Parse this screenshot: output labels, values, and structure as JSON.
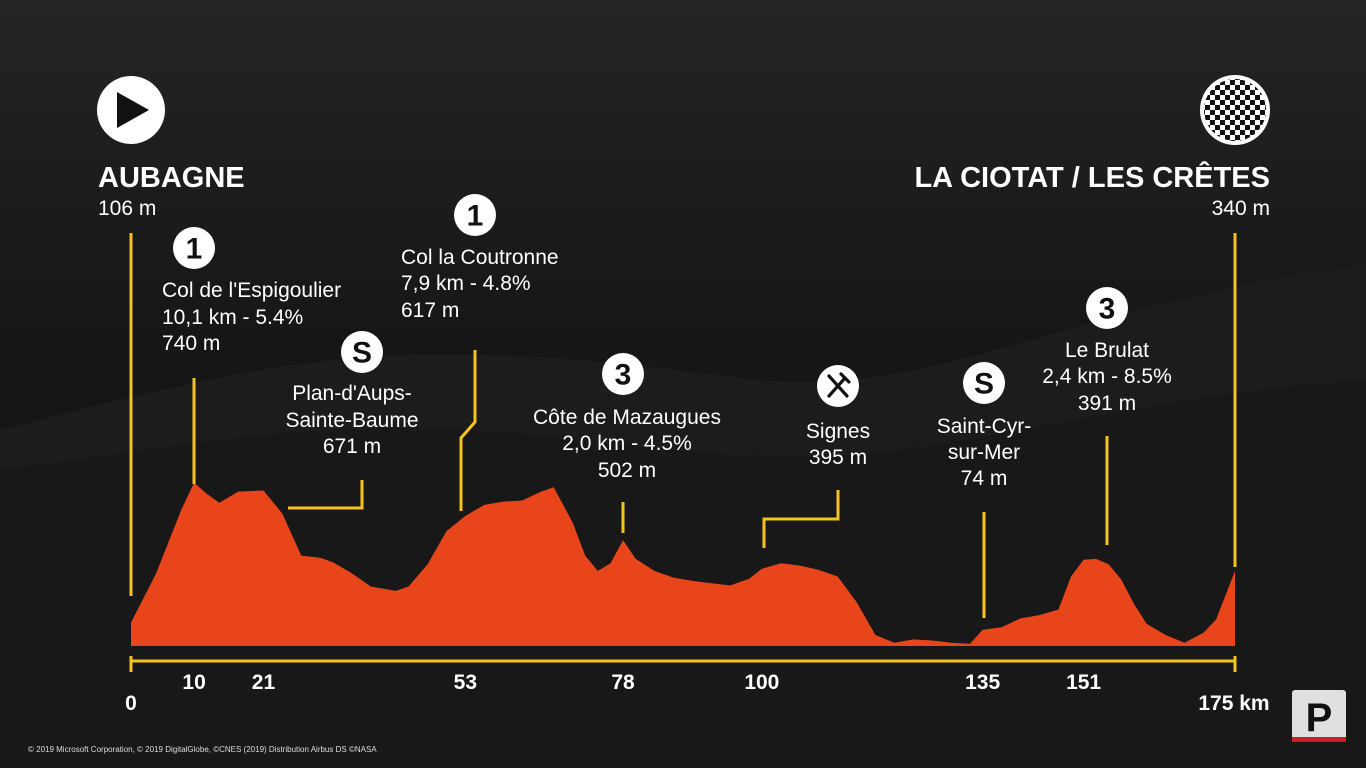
{
  "colors": {
    "profile": "#e8451b",
    "marker": "#f6c21e",
    "text": "#ffffff",
    "badge_bg": "#ffffff",
    "badge_text": "#111111"
  },
  "start": {
    "name": "AUBAGNE",
    "altitude": "106 m",
    "icon": "play-icon"
  },
  "finish": {
    "name": "LA CIOTAT / LES CRÊTES",
    "altitude": "340 m",
    "icon": "checkered-flag-icon"
  },
  "copyright": "© 2019 Microsoft Corporation, © 2019 DigitalGlobe, ©CNES (2019) Distribution Airbus DS ©NASA",
  "brand_logo": "P",
  "chart_data": {
    "type": "area",
    "x_unit": "km",
    "xlim": [
      0,
      175
    ],
    "ylim": [
      0,
      780
    ],
    "x_tick_labels": [
      {
        "km": 0,
        "label": "0"
      },
      {
        "km": 10,
        "label": "10"
      },
      {
        "km": 21,
        "label": "21"
      },
      {
        "km": 53,
        "label": "53"
      },
      {
        "km": 78,
        "label": "78"
      },
      {
        "km": 100,
        "label": "100"
      },
      {
        "km": 135,
        "label": "135"
      },
      {
        "km": 151,
        "label": "151"
      },
      {
        "km": 175,
        "label": "175 km"
      }
    ],
    "profile": [
      [
        0,
        106
      ],
      [
        4,
        330
      ],
      [
        8,
        620
      ],
      [
        10,
        740
      ],
      [
        12,
        690
      ],
      [
        14,
        650
      ],
      [
        17,
        700
      ],
      [
        21,
        705
      ],
      [
        24,
        600
      ],
      [
        27,
        410
      ],
      [
        30,
        400
      ],
      [
        32,
        380
      ],
      [
        35,
        330
      ],
      [
        38,
        270
      ],
      [
        42,
        250
      ],
      [
        44,
        270
      ],
      [
        47,
        370
      ],
      [
        50,
        520
      ],
      [
        53,
        590
      ],
      [
        56,
        640
      ],
      [
        59,
        655
      ],
      [
        62,
        660
      ],
      [
        65,
        700
      ],
      [
        67,
        720
      ],
      [
        70,
        560
      ],
      [
        72,
        410
      ],
      [
        74,
        340
      ],
      [
        76,
        375
      ],
      [
        78,
        480
      ],
      [
        80,
        395
      ],
      [
        83,
        340
      ],
      [
        86,
        310
      ],
      [
        89,
        295
      ],
      [
        92,
        285
      ],
      [
        95,
        275
      ],
      [
        98,
        305
      ],
      [
        100,
        350
      ],
      [
        103,
        375
      ],
      [
        106,
        365
      ],
      [
        109,
        345
      ],
      [
        112,
        315
      ],
      [
        115,
        200
      ],
      [
        118,
        50
      ],
      [
        121,
        15
      ],
      [
        124,
        30
      ],
      [
        127,
        25
      ],
      [
        130,
        15
      ],
      [
        133,
        10
      ],
      [
        135,
        74
      ],
      [
        138,
        85
      ],
      [
        141,
        125
      ],
      [
        144,
        140
      ],
      [
        147,
        165
      ],
      [
        149,
        315
      ],
      [
        151,
        391
      ],
      [
        153,
        395
      ],
      [
        155,
        370
      ],
      [
        157,
        300
      ],
      [
        159,
        190
      ],
      [
        161,
        100
      ],
      [
        164,
        50
      ],
      [
        167,
        15
      ],
      [
        170,
        60
      ],
      [
        172,
        120
      ],
      [
        175,
        340
      ]
    ],
    "points": [
      {
        "km": 10,
        "elev": 740,
        "category": "1",
        "name": "Col de l'Espigoulier",
        "detail": "10,1 km - 5.4%",
        "altitude_label": "740 m"
      },
      {
        "km": 21,
        "elev": 671,
        "category": "S",
        "name": "Plan-d'Aups-",
        "name2": "Sainte-Baume",
        "altitude_label": "671 m"
      },
      {
        "km": 53,
        "elev": 617,
        "category": "1",
        "name": "Col la Coutronne",
        "detail": "7,9 km - 4.8%",
        "altitude_label": "617 m"
      },
      {
        "km": 78,
        "elev": 502,
        "category": "3",
        "name": "Côte de Mazaugues",
        "detail": "2,0 km - 4.5%",
        "altitude_label": "502 m"
      },
      {
        "km": 100,
        "elev": 395,
        "category": "feed",
        "name": "Signes",
        "altitude_label": "395 m"
      },
      {
        "km": 135,
        "elev": 74,
        "category": "S",
        "name": "Saint-Cyr-",
        "name2": "sur-Mer",
        "altitude_label": "74 m"
      },
      {
        "km": 151,
        "elev": 391,
        "category": "3",
        "name": "Le Brulat",
        "detail": "2,4 km - 8.5%",
        "altitude_label": "391 m"
      }
    ]
  }
}
